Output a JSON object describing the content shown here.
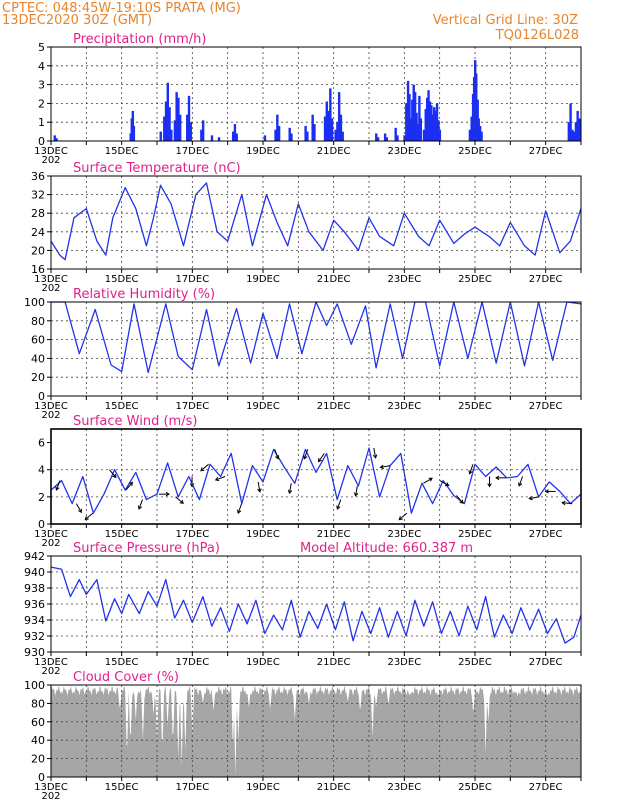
{
  "header": {
    "left_line1": "CPTEC:   048:45W-19:10S   PRATA (MG)",
    "left_line2": "13DEC2020 30Z (GMT)",
    "right_line1": "Vertical Grid Line: 30Z",
    "right_line2": "TQ0126L028"
  },
  "colors": {
    "header": "#e8842a",
    "panel_title": "#e0218a",
    "series": "#2233ee",
    "precip_bars": "#1a2ef5",
    "cloud": "#a6a6a6",
    "arrows": "#000000",
    "grid": "#444444"
  },
  "x_axis": {
    "labels": [
      "13DEC",
      "15DEC",
      "17DEC",
      "19DEC",
      "21DEC",
      "23DEC",
      "25DEC",
      "27DEC"
    ],
    "first_label_suffix": "202",
    "days": 15
  },
  "chart_data": [
    {
      "type": "bar",
      "title": "Precipitation (mm/h)",
      "ylim": [
        0,
        5
      ],
      "yticks": [
        "0",
        "1",
        "2",
        "3",
        "4",
        "5"
      ],
      "grid": true,
      "bars": [
        {
          "day": 0.1,
          "v": 0.3
        },
        {
          "day": 0.15,
          "v": 0.15
        },
        {
          "day": 2.25,
          "v": 0.4
        },
        {
          "day": 2.28,
          "v": 1.2
        },
        {
          "day": 2.31,
          "v": 1.6
        },
        {
          "day": 2.34,
          "v": 0.8
        },
        {
          "day": 3.1,
          "v": 0.5
        },
        {
          "day": 3.2,
          "v": 1.3
        },
        {
          "day": 3.25,
          "v": 2.1
        },
        {
          "day": 3.3,
          "v": 3.1
        },
        {
          "day": 3.35,
          "v": 1.8
        },
        {
          "day": 3.4,
          "v": 0.6
        },
        {
          "day": 3.5,
          "v": 1.1
        },
        {
          "day": 3.55,
          "v": 2.6
        },
        {
          "day": 3.6,
          "v": 2.3
        },
        {
          "day": 3.65,
          "v": 1.4
        },
        {
          "day": 3.85,
          "v": 1.4
        },
        {
          "day": 3.9,
          "v": 2.4
        },
        {
          "day": 3.95,
          "v": 1.0
        },
        {
          "day": 4.25,
          "v": 0.6
        },
        {
          "day": 4.3,
          "v": 1.1
        },
        {
          "day": 4.55,
          "v": 0.3
        },
        {
          "day": 4.75,
          "v": 0.2
        },
        {
          "day": 5.15,
          "v": 0.5
        },
        {
          "day": 5.2,
          "v": 0.9
        },
        {
          "day": 5.25,
          "v": 0.4
        },
        {
          "day": 6.05,
          "v": 0.3
        },
        {
          "day": 6.35,
          "v": 0.6
        },
        {
          "day": 6.4,
          "v": 1.4
        },
        {
          "day": 6.45,
          "v": 0.8
        },
        {
          "day": 6.75,
          "v": 0.7
        },
        {
          "day": 6.8,
          "v": 0.4
        },
        {
          "day": 7.2,
          "v": 0.8
        },
        {
          "day": 7.25,
          "v": 0.5
        },
        {
          "day": 7.4,
          "v": 1.4
        },
        {
          "day": 7.45,
          "v": 0.9
        },
        {
          "day": 7.75,
          "v": 1.3
        },
        {
          "day": 7.8,
          "v": 2.1
        },
        {
          "day": 7.85,
          "v": 1.6
        },
        {
          "day": 7.9,
          "v": 2.8
        },
        {
          "day": 7.95,
          "v": 1.2
        },
        {
          "day": 8.05,
          "v": 0.6
        },
        {
          "day": 8.1,
          "v": 1.0
        },
        {
          "day": 8.15,
          "v": 2.6
        },
        {
          "day": 8.2,
          "v": 1.4
        },
        {
          "day": 8.25,
          "v": 0.5
        },
        {
          "day": 9.2,
          "v": 0.4
        },
        {
          "day": 9.25,
          "v": 0.2
        },
        {
          "day": 9.45,
          "v": 0.4
        },
        {
          "day": 9.5,
          "v": 0.2
        },
        {
          "day": 9.75,
          "v": 0.7
        },
        {
          "day": 9.8,
          "v": 0.3
        },
        {
          "day": 10.0,
          "v": 0.3
        },
        {
          "day": 10.05,
          "v": 2.0
        },
        {
          "day": 10.1,
          "v": 3.2
        },
        {
          "day": 10.14,
          "v": 2.5
        },
        {
          "day": 10.18,
          "v": 1.2
        },
        {
          "day": 10.22,
          "v": 2.2
        },
        {
          "day": 10.26,
          "v": 3.0
        },
        {
          "day": 10.3,
          "v": 2.6
        },
        {
          "day": 10.34,
          "v": 1.5
        },
        {
          "day": 10.38,
          "v": 0.9
        },
        {
          "day": 10.42,
          "v": 2.4
        },
        {
          "day": 10.46,
          "v": 1.2
        },
        {
          "day": 10.55,
          "v": 0.6
        },
        {
          "day": 10.6,
          "v": 1.7
        },
        {
          "day": 10.64,
          "v": 2.3
        },
        {
          "day": 10.68,
          "v": 2.7
        },
        {
          "day": 10.72,
          "v": 2.1
        },
        {
          "day": 10.76,
          "v": 1.9
        },
        {
          "day": 10.8,
          "v": 1.4
        },
        {
          "day": 10.84,
          "v": 1.8
        },
        {
          "day": 10.88,
          "v": 1.6
        },
        {
          "day": 10.92,
          "v": 2.0
        },
        {
          "day": 10.96,
          "v": 1.1
        },
        {
          "day": 11.0,
          "v": 0.6
        },
        {
          "day": 11.85,
          "v": 0.6
        },
        {
          "day": 11.9,
          "v": 1.3
        },
        {
          "day": 11.94,
          "v": 2.5
        },
        {
          "day": 11.97,
          "v": 3.4
        },
        {
          "day": 12.0,
          "v": 4.3
        },
        {
          "day": 12.03,
          "v": 3.6
        },
        {
          "day": 12.07,
          "v": 2.2
        },
        {
          "day": 12.1,
          "v": 1.2
        },
        {
          "day": 12.14,
          "v": 0.8
        },
        {
          "day": 12.18,
          "v": 0.5
        },
        {
          "day": 14.65,
          "v": 1.0
        },
        {
          "day": 14.7,
          "v": 2.0
        },
        {
          "day": 14.75,
          "v": 0.6
        },
        {
          "day": 14.8,
          "v": 0.5
        },
        {
          "day": 14.85,
          "v": 1.0
        },
        {
          "day": 14.9,
          "v": 1.6
        },
        {
          "day": 14.95,
          "v": 1.2
        }
      ]
    },
    {
      "type": "line",
      "title": "Surface Temperature (nC)",
      "ylim": [
        16,
        36
      ],
      "yticks": [
        "16",
        "20",
        "24",
        "28",
        "32",
        "36"
      ],
      "grid": true,
      "x_days": [
        0.0,
        0.25,
        0.4,
        0.65,
        1.0,
        1.3,
        1.55,
        1.75,
        2.1,
        2.4,
        2.7,
        2.9,
        3.1,
        3.4,
        3.75,
        4.1,
        4.4,
        4.7,
        5.0,
        5.4,
        5.7,
        6.1,
        6.4,
        6.7,
        7.0,
        7.3,
        7.7,
        8.0,
        8.3,
        8.7,
        9.0,
        9.3,
        9.7,
        10.0,
        10.4,
        10.7,
        11.0,
        11.4,
        11.7,
        12.0,
        12.4,
        12.7,
        13.0,
        13.4,
        13.7,
        14.0,
        14.4,
        14.7,
        15.0
      ],
      "values": [
        22,
        19,
        18,
        27,
        29,
        22,
        19,
        27,
        33.5,
        29,
        21,
        27,
        34,
        30,
        21,
        32,
        34.5,
        24,
        22,
        32,
        21,
        32,
        26,
        21,
        30,
        24,
        20,
        26.5,
        24,
        20,
        27,
        23,
        21,
        28,
        23,
        21,
        26.5,
        21.5,
        23.5,
        25,
        23,
        21,
        26,
        21,
        19,
        28.5,
        19.5,
        22,
        29
      ]
    },
    {
      "type": "line",
      "title": "Relative Humidity (%)",
      "ylim": [
        0,
        100
      ],
      "yticks": [
        "0",
        "20",
        "40",
        "60",
        "80",
        "100"
      ],
      "grid": true,
      "x_days": [
        0.0,
        0.4,
        0.8,
        1.25,
        1.7,
        2.0,
        2.35,
        2.75,
        3.25,
        3.6,
        4.0,
        4.4,
        4.75,
        5.25,
        5.65,
        6.0,
        6.4,
        6.75,
        7.1,
        7.5,
        7.8,
        8.1,
        8.5,
        8.9,
        9.2,
        9.6,
        9.95,
        10.3,
        10.6,
        11.0,
        11.4,
        11.8,
        12.2,
        12.6,
        13.0,
        13.4,
        13.8,
        14.2,
        14.6,
        15.0
      ],
      "values": [
        100,
        100,
        45,
        92,
        33,
        26,
        98,
        25,
        98,
        42,
        28,
        92,
        32,
        93,
        35,
        88,
        40,
        98,
        45,
        100,
        75,
        98,
        55,
        96,
        30,
        98,
        40,
        100,
        100,
        32,
        100,
        40,
        100,
        35,
        100,
        32,
        100,
        38,
        100,
        98
      ]
    },
    {
      "type": "line",
      "title": "Surface Wind (m/s)",
      "ylim": [
        0,
        7
      ],
      "yticks": [
        "0",
        "2",
        "4",
        "6"
      ],
      "grid": true,
      "x_days": [
        0.0,
        0.3,
        0.6,
        0.9,
        1.2,
        1.5,
        1.8,
        2.1,
        2.4,
        2.7,
        3.0,
        3.3,
        3.6,
        3.9,
        4.2,
        4.5,
        4.8,
        5.1,
        5.4,
        5.7,
        6.0,
        6.3,
        6.6,
        6.9,
        7.2,
        7.5,
        7.8,
        8.1,
        8.4,
        8.7,
        9.0,
        9.3,
        9.6,
        9.9,
        10.2,
        10.5,
        10.8,
        11.1,
        11.4,
        11.7,
        12.0,
        12.3,
        12.6,
        12.9,
        13.2,
        13.5,
        13.8,
        14.1,
        14.4,
        14.7,
        15.0
      ],
      "values": [
        2.5,
        3.2,
        1.5,
        3.5,
        0.8,
        2.2,
        4.0,
        2.5,
        3.8,
        1.8,
        2.2,
        4.5,
        2.0,
        3.5,
        1.8,
        4.4,
        3.5,
        5.2,
        1.5,
        4.3,
        3.1,
        5.5,
        4.2,
        3.0,
        5.5,
        3.8,
        5.2,
        1.8,
        4.3,
        2.8,
        5.6,
        2.0,
        4.3,
        5.2,
        0.8,
        3.0,
        1.5,
        3.2,
        2.1,
        1.5,
        4.4,
        3.5,
        4.2,
        3.4,
        3.5,
        4.4,
        2.0,
        3.1,
        2.4,
        1.5,
        2.2
      ],
      "arrows_deg": [
        200,
        150,
        230,
        140,
        40,
        200,
        90,
        130,
        180,
        230,
        250,
        200,
        170,
        160,
        190,
        200,
        215,
        200,
        190,
        170,
        260,
        230,
        60,
        120,
        140,
        200,
        180,
        270,
        200,
        260,
        270,
        275
      ]
    },
    {
      "type": "line",
      "title": "Surface Pressure (hPa)",
      "annotation": "Model Altitude: 660.387 m",
      "ylim": [
        929,
        942
      ],
      "yticks": [
        "930",
        "932",
        "934",
        "936",
        "938",
        "940",
        "942"
      ],
      "grid": true,
      "x_days": [
        0.0,
        0.3,
        0.55,
        0.8,
        1.0,
        1.3,
        1.55,
        1.8,
        2.0,
        2.2,
        2.5,
        2.75,
        3.0,
        3.25,
        3.5,
        3.75,
        4.0,
        4.3,
        4.55,
        4.8,
        5.05,
        5.3,
        5.55,
        5.8,
        6.05,
        6.3,
        6.55,
        6.8,
        7.05,
        7.3,
        7.55,
        7.8,
        8.05,
        8.3,
        8.55,
        8.8,
        9.05,
        9.3,
        9.55,
        9.8,
        10.05,
        10.3,
        10.55,
        10.8,
        11.05,
        11.3,
        11.55,
        11.8,
        12.05,
        12.3,
        12.55,
        12.8,
        13.05,
        13.3,
        13.55,
        13.8,
        14.05,
        14.3,
        14.55,
        14.8,
        15.0
      ],
      "values": [
        940.5,
        940.2,
        936.5,
        938.8,
        936.8,
        938.8,
        933.2,
        936.2,
        934.2,
        936.8,
        934.2,
        937.2,
        935.2,
        938.8,
        933.6,
        936.0,
        933.0,
        936.5,
        932.5,
        935.0,
        931.8,
        935.5,
        932.8,
        936.0,
        931.5,
        934.0,
        932.0,
        936.0,
        931.0,
        934.5,
        932.2,
        935.5,
        932.0,
        935.8,
        930.5,
        934.5,
        931.5,
        935.0,
        931.0,
        934.5,
        931.2,
        936.0,
        932.5,
        935.8,
        931.5,
        934.5,
        931.2,
        935.2,
        932.0,
        936.5,
        931.0,
        934.0,
        931.5,
        935.0,
        932.0,
        934.8,
        931.5,
        933.5,
        930.2,
        931.0,
        934.0
      ]
    },
    {
      "type": "area",
      "title": "Cloud Cover (%)",
      "ylim": [
        0,
        100
      ],
      "yticks": [
        "0",
        "20",
        "40",
        "60",
        "80",
        "100"
      ],
      "grid": true,
      "baseline": 94,
      "dips": [
        {
          "day": 1.95,
          "v": 72
        },
        {
          "day": 2.15,
          "v": 20
        },
        {
          "day": 2.25,
          "v": 35
        },
        {
          "day": 2.4,
          "v": 62
        },
        {
          "day": 2.6,
          "v": 40
        },
        {
          "day": 2.9,
          "v": 68
        },
        {
          "day": 3.0,
          "v": 38
        },
        {
          "day": 3.15,
          "v": 25
        },
        {
          "day": 3.3,
          "v": 55
        },
        {
          "day": 3.45,
          "v": 35
        },
        {
          "day": 3.6,
          "v": 20
        },
        {
          "day": 3.7,
          "v": 12
        },
        {
          "day": 3.8,
          "v": 30
        },
        {
          "day": 4.0,
          "v": 45
        },
        {
          "day": 4.3,
          "v": 80
        },
        {
          "day": 4.6,
          "v": 72
        },
        {
          "day": 5.15,
          "v": 28
        },
        {
          "day": 5.22,
          "v": 2
        },
        {
          "day": 5.3,
          "v": 40
        },
        {
          "day": 5.6,
          "v": 76
        },
        {
          "day": 6.2,
          "v": 74
        },
        {
          "day": 6.9,
          "v": 62
        },
        {
          "day": 7.3,
          "v": 80
        },
        {
          "day": 8.4,
          "v": 82
        },
        {
          "day": 8.75,
          "v": 70
        },
        {
          "day": 9.1,
          "v": 44
        },
        {
          "day": 9.2,
          "v": 76
        },
        {
          "day": 9.55,
          "v": 78
        },
        {
          "day": 10.15,
          "v": 88
        },
        {
          "day": 10.95,
          "v": 88
        },
        {
          "day": 11.95,
          "v": 68
        },
        {
          "day": 12.3,
          "v": 26
        },
        {
          "day": 12.38,
          "v": 60
        },
        {
          "day": 13.2,
          "v": 88
        },
        {
          "day": 14.05,
          "v": 88
        }
      ]
    }
  ]
}
